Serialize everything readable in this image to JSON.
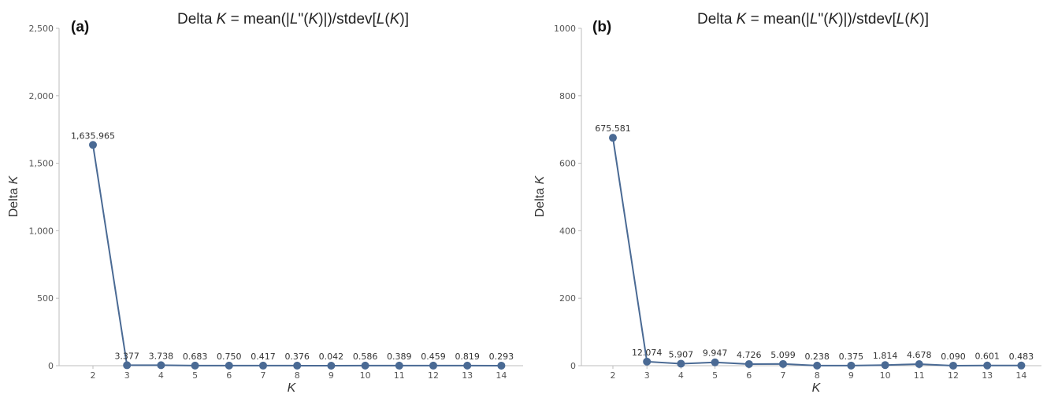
{
  "chart_data": [
    {
      "type": "line",
      "panel": "(a)",
      "title": "Delta K = mean(|L\"(K)|)/stdev[L(K)]",
      "xlabel": "K",
      "ylabel": "Delta K",
      "x": [
        2,
        3,
        4,
        5,
        6,
        7,
        8,
        9,
        10,
        11,
        12,
        13,
        14
      ],
      "y": [
        1635.965,
        3.377,
        3.738,
        0.683,
        0.75,
        0.417,
        0.376,
        0.042,
        0.586,
        0.389,
        0.459,
        0.819,
        0.293
      ],
      "labels": [
        "1,635.965",
        "3.377",
        "3.738",
        "0.683",
        "0.750",
        "0.417",
        "0.376",
        "0.042",
        "0.586",
        "0.389",
        "0.459",
        "0.819",
        "0.293"
      ],
      "yticks": [
        0,
        500,
        1000,
        1500,
        2000,
        2500
      ],
      "ytick_labels": [
        "0",
        "500",
        "1,000",
        "1,500",
        "2,000",
        "2,500"
      ],
      "ylim": [
        0,
        2500
      ],
      "grid": false,
      "color": "#4a6a94"
    },
    {
      "type": "line",
      "panel": "(b)",
      "title": "Delta K = mean(|L\"(K)|)/stdev[L(K)]",
      "xlabel": "K",
      "ylabel": "Delta K",
      "x": [
        2,
        3,
        4,
        5,
        6,
        7,
        8,
        9,
        10,
        11,
        12,
        13,
        14
      ],
      "y": [
        675.581,
        12.074,
        5.907,
        9.947,
        4.726,
        5.099,
        0.238,
        0.375,
        1.814,
        4.678,
        0.09,
        0.601,
        0.483
      ],
      "labels": [
        "675.581",
        "12.074",
        "5.907",
        "9.947",
        "4.726",
        "5.099",
        "0.238",
        "0.375",
        "1.814",
        "4.678",
        "0.090",
        "0.601",
        "0.483"
      ],
      "yticks": [
        0,
        200,
        400,
        600,
        800,
        1000
      ],
      "ytick_labels": [
        "0",
        "200",
        "400",
        "600",
        "800",
        "1000"
      ],
      "ylim": [
        0,
        1000
      ],
      "grid": false,
      "color": "#4a6a94"
    }
  ]
}
